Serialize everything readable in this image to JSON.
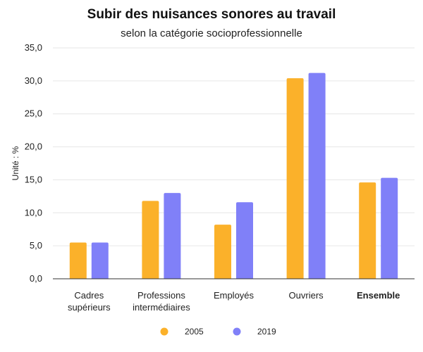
{
  "chart_data": {
    "type": "bar",
    "title": "Subir des nuisances sonores au travail",
    "subtitle": "selon la catégorie socioprofessionnelle",
    "ylabel": "Unité : %",
    "xlabel": "",
    "ylim": [
      0,
      35
    ],
    "yticks": [
      "0,0",
      "5,0",
      "10,0",
      "15,0",
      "20,0",
      "25,0",
      "30,0",
      "35,0"
    ],
    "categories": [
      [
        "Cadres",
        "supérieurs"
      ],
      [
        "Professions",
        "intermédiaires"
      ],
      [
        "Employés"
      ],
      [
        "Ouvriers"
      ],
      [
        "Ensemble"
      ]
    ],
    "bold_categories": [
      4
    ],
    "series": [
      {
        "name": "2005",
        "color": "#FBB12A",
        "values": [
          5.5,
          11.8,
          8.2,
          30.4,
          14.6
        ]
      },
      {
        "name": "2019",
        "color": "#8080F8",
        "values": [
          5.5,
          13.0,
          11.6,
          31.2,
          15.3
        ]
      }
    ],
    "grid": true,
    "legend_position": "bottom-center"
  }
}
